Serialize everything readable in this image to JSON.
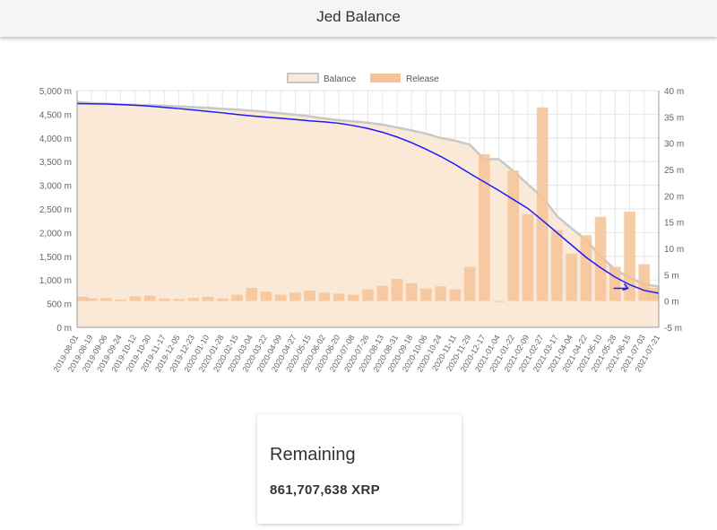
{
  "header": {
    "title": "Jed Balance"
  },
  "card": {
    "label": "Remaining",
    "value": "861,707,638 XRP"
  },
  "colors": {
    "balance_fill": "#fbe9d8",
    "balance_line": "#c8c8c8",
    "release_bar": "#f5c397",
    "trend_line": "#1a1aff",
    "grid": "#e6e6e6"
  },
  "chart_data": {
    "type": "bar",
    "legend": {
      "position": "top",
      "entries": [
        "Balance",
        "Release"
      ]
    },
    "grid": true,
    "left_axis": {
      "min": 0,
      "max": 5000,
      "ticks": [
        "0 m",
        "500 m",
        "1,000 m",
        "1,500 m",
        "2,000 m",
        "2,500 m",
        "3,000 m",
        "3,500 m",
        "4,000 m",
        "4,500 m",
        "5,000 m"
      ]
    },
    "right_axis": {
      "min": -5,
      "max": 40,
      "ticks": [
        "-5 m",
        "0 m",
        "5 m",
        "10 m",
        "15 m",
        "20 m",
        "25 m",
        "30 m",
        "35 m",
        "40 m"
      ]
    },
    "x_labels": [
      "2019-08-01",
      "2019-08-19",
      "2019-09-06",
      "2019-09-24",
      "2019-10-12",
      "2019-10-30",
      "2019-11-17",
      "2019-12-05",
      "2019-12-23",
      "2020-01-10",
      "2020-01-28",
      "2020-02-15",
      "2020-03-04",
      "2020-03-22",
      "2020-04-09",
      "2020-04-27",
      "2020-05-15",
      "2020-06-02",
      "2020-06-20",
      "2020-07-08",
      "2020-07-26",
      "2020-08-13",
      "2020-08-31",
      "2020-09-18",
      "2020-10-06",
      "2020-10-24",
      "2020-11-11",
      "2020-11-29",
      "2020-12-17",
      "2021-01-04",
      "2021-01-22",
      "2021-02-09",
      "2021-02-27",
      "2021-03-17",
      "2021-04-04",
      "2021-04-22",
      "2021-05-10",
      "2021-05-28",
      "2021-06-15",
      "2021-07-03",
      "2021-07-21"
    ],
    "series": [
      {
        "name": "Balance",
        "axis": "left",
        "type": "area",
        "values": [
          4760,
          4735,
          4725,
          4710,
          4700,
          4690,
          4680,
          4665,
          4650,
          4635,
          4615,
          4600,
          4575,
          4550,
          4520,
          4490,
          4455,
          4410,
          4375,
          4350,
          4320,
          4280,
          4220,
          4160,
          4090,
          4000,
          3940,
          3860,
          3550,
          3550,
          3300,
          3020,
          2750,
          2350,
          2090,
          1850,
          1500,
          1220,
          1050,
          910,
          862
        ]
      },
      {
        "name": "Release",
        "axis": "right",
        "values": [
          0.8,
          0.5,
          0.6,
          0.3,
          0.9,
          1.0,
          0.5,
          0.4,
          0.6,
          0.8,
          0.5,
          1.2,
          2.5,
          1.8,
          1.2,
          1.6,
          2.0,
          1.6,
          1.4,
          1.2,
          2.2,
          2.9,
          4.2,
          3.4,
          2.4,
          2.8,
          2.2,
          6.5,
          27.9,
          -0.1,
          24.8,
          16.5,
          36.8,
          13.5,
          9.0,
          12.5,
          16.0,
          6.5,
          17.0,
          7.0,
          2.5
        ]
      },
      {
        "name": "",
        "axis": "left",
        "type": "line",
        "role": "trend",
        "values": [
          4725,
          4720,
          4715,
          4705,
          4690,
          4670,
          4645,
          4620,
          4590,
          4560,
          4530,
          4495,
          4465,
          4440,
          4415,
          4390,
          4360,
          4340,
          4310,
          4260,
          4200,
          4120,
          4020,
          3900,
          3760,
          3610,
          3440,
          3250,
          3070,
          2890,
          2700,
          2510,
          2260,
          2000,
          1740,
          1480,
          1260,
          1060,
          900,
          780,
          720
        ]
      }
    ]
  }
}
